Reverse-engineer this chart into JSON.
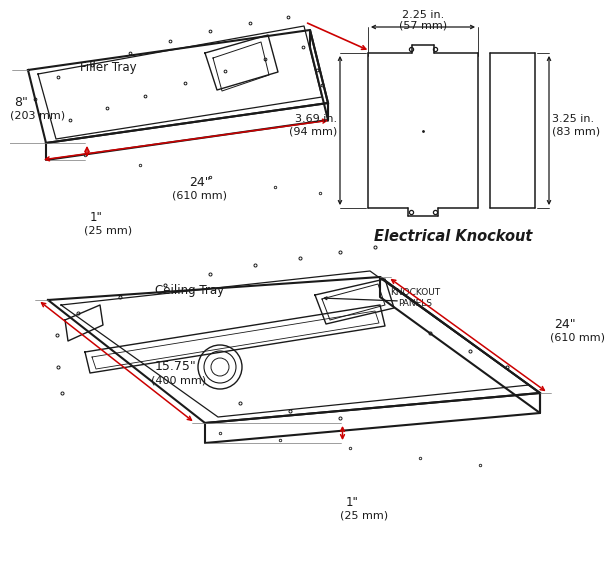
{
  "background_color": "#ffffff",
  "line_color": "#1a1a1a",
  "red_color": "#cc0000",
  "filler_tray_label": "Filler Tray",
  "ceiling_tray_label": "Ceiling Tray",
  "elec_knockout_label": "Electrical Knockout",
  "knockout_panels_label": "KNOCKOUT\nPANELS",
  "dim_24in": "24\"",
  "dim_24mm": "(610 mm)",
  "dim_8in": "8\"",
  "dim_8mm": "(203 mm)",
  "dim_1in_top": "1\"",
  "dim_1mm_top": "(25 mm)",
  "dim_1in_bot": "1\"",
  "dim_1mm_bot": "(25 mm)",
  "dim_1575in": "15.75\"",
  "dim_1575mm": "(400 mm)",
  "dim_24in_bot": "24\"",
  "dim_24mm_bot": "(610 mm)",
  "dim_225in": "2.25 in.",
  "dim_225mm": "(57 mm)",
  "dim_369in": "3.69 in.",
  "dim_369mm": "(94 mm)",
  "dim_325in": "3.25 in.",
  "dim_325mm": "(83 mm)"
}
